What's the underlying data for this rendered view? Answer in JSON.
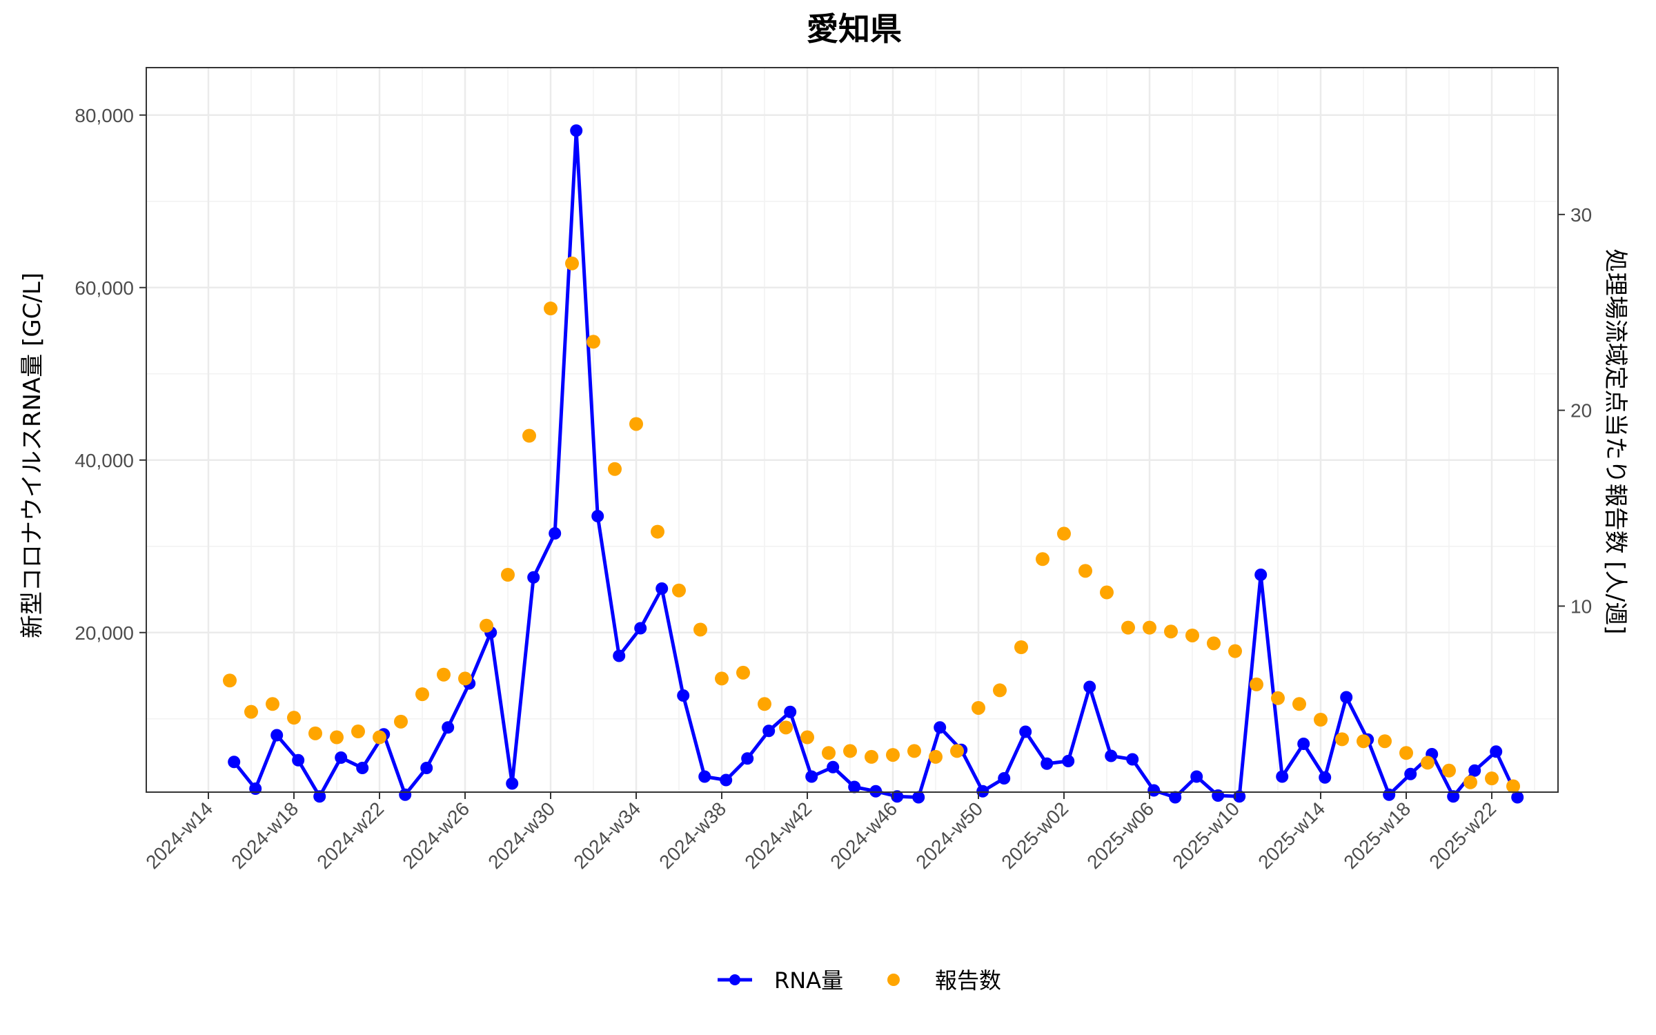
{
  "chart_data": {
    "type": "line",
    "title": "愛知県",
    "ylabel_left": "新型コロナウイルスRNA量 [GC/L]",
    "ylabel_right": "処理場流域定点当たり報告数 [人/週]",
    "x_tick_labels": [
      "2024-w14",
      "2024-w18",
      "2024-w22",
      "2024-w26",
      "2024-w30",
      "2024-w34",
      "2024-w38",
      "2024-w42",
      "2024-w46",
      "2024-w50",
      "2025-w02",
      "2025-w06",
      "2025-w10",
      "2025-w14",
      "2025-w18",
      "2025-w22"
    ],
    "y_left_ticks": [
      "20,000",
      "40,000",
      "60,000",
      "80,000"
    ],
    "y_right_ticks": [
      "10",
      "20",
      "30"
    ],
    "ylim_left": [
      1500,
      85500
    ],
    "ylim_right": [
      0.5,
      37.5
    ],
    "grid": true,
    "legend_position": "bottom",
    "colors": {
      "rna": "#0000ff",
      "reports": "#ffa500"
    },
    "series": [
      {
        "name": "RNA量",
        "axis": "left",
        "style": "line+points",
        "points": [
          [
            0.6,
            5000
          ],
          [
            1.1,
            1900
          ],
          [
            1.6,
            8100
          ],
          [
            2.1,
            5200
          ],
          [
            2.6,
            1000
          ],
          [
            3.1,
            5500
          ],
          [
            3.6,
            4300
          ],
          [
            4.1,
            8200
          ],
          [
            4.6,
            1200
          ],
          [
            5.1,
            4300
          ],
          [
            5.6,
            9000
          ],
          [
            6.1,
            14100
          ],
          [
            6.6,
            20000
          ],
          [
            7.1,
            2500
          ],
          [
            7.6,
            26400
          ],
          [
            8.1,
            31500
          ],
          [
            8.6,
            78200
          ],
          [
            9.1,
            33500
          ],
          [
            9.6,
            17300
          ],
          [
            10.1,
            20500
          ],
          [
            10.6,
            25100
          ],
          [
            11.1,
            12700
          ],
          [
            11.6,
            3300
          ],
          [
            12.1,
            2900
          ],
          [
            12.6,
            5400
          ],
          [
            13.1,
            8600
          ],
          [
            13.6,
            10800
          ],
          [
            14.1,
            3300
          ],
          [
            14.6,
            4400
          ],
          [
            15.1,
            2100
          ],
          [
            15.6,
            1600
          ],
          [
            16.1,
            1000
          ],
          [
            16.6,
            900
          ],
          [
            17.1,
            9000
          ],
          [
            17.6,
            6400
          ],
          [
            18.1,
            1600
          ],
          [
            18.6,
            3100
          ],
          [
            19.1,
            8500
          ],
          [
            19.6,
            4800
          ],
          [
            20.1,
            5100
          ],
          [
            20.6,
            13700
          ],
          [
            21.1,
            5700
          ],
          [
            21.6,
            5300
          ],
          [
            22.1,
            1700
          ],
          [
            22.6,
            900
          ],
          [
            23.1,
            3300
          ],
          [
            23.6,
            1100
          ],
          [
            24.1,
            1000
          ],
          [
            24.6,
            26700
          ],
          [
            25.1,
            3300
          ],
          [
            25.6,
            7100
          ],
          [
            26.1,
            3200
          ],
          [
            26.6,
            12500
          ],
          [
            27.1,
            7600
          ],
          [
            27.6,
            1200
          ],
          [
            28.1,
            3600
          ],
          [
            28.6,
            5900
          ],
          [
            29.1,
            1000
          ],
          [
            29.6,
            4000
          ],
          [
            30.1,
            6200
          ],
          [
            30.6,
            900
          ]
        ]
      },
      {
        "name": "報告数",
        "axis": "right",
        "style": "points",
        "points": [
          [
            0.5,
            6.2
          ],
          [
            1.0,
            4.6
          ],
          [
            1.5,
            5.0
          ],
          [
            2.0,
            4.3
          ],
          [
            2.5,
            3.5
          ],
          [
            3.0,
            3.3
          ],
          [
            3.5,
            3.6
          ],
          [
            4.0,
            3.3
          ],
          [
            4.5,
            4.1
          ],
          [
            5.0,
            5.5
          ],
          [
            5.5,
            6.5
          ],
          [
            6.0,
            6.3
          ],
          [
            6.5,
            9.0
          ],
          [
            7.0,
            11.6
          ],
          [
            7.5,
            18.7
          ],
          [
            8.0,
            25.2
          ],
          [
            8.5,
            27.5
          ],
          [
            9.0,
            23.5
          ],
          [
            9.5,
            17.0
          ],
          [
            10.0,
            19.3
          ],
          [
            10.5,
            13.8
          ],
          [
            11.0,
            10.8
          ],
          [
            11.5,
            8.8
          ],
          [
            12.0,
            6.3
          ],
          [
            12.5,
            6.6
          ],
          [
            13.0,
            5.0
          ],
          [
            13.5,
            3.8
          ],
          [
            14.0,
            3.3
          ],
          [
            14.5,
            2.5
          ],
          [
            15.0,
            2.6
          ],
          [
            15.5,
            2.3
          ],
          [
            16.0,
            2.4
          ],
          [
            16.5,
            2.6
          ],
          [
            17.0,
            2.3
          ],
          [
            17.5,
            2.6
          ],
          [
            18.0,
            4.8
          ],
          [
            18.5,
            5.7
          ],
          [
            19.0,
            7.9
          ],
          [
            19.5,
            12.4
          ],
          [
            20.0,
            13.7
          ],
          [
            20.5,
            11.8
          ],
          [
            21.0,
            10.7
          ],
          [
            21.5,
            8.9
          ],
          [
            22.0,
            8.9
          ],
          [
            22.5,
            8.7
          ],
          [
            23.0,
            8.5
          ],
          [
            23.5,
            8.1
          ],
          [
            24.0,
            7.7
          ],
          [
            24.5,
            6.0
          ],
          [
            25.0,
            5.3
          ],
          [
            25.5,
            5.0
          ],
          [
            26.0,
            4.2
          ],
          [
            26.5,
            3.2
          ],
          [
            27.0,
            3.1
          ],
          [
            27.5,
            3.1
          ],
          [
            28.0,
            2.5
          ],
          [
            28.5,
            2.0
          ],
          [
            29.0,
            1.6
          ],
          [
            29.5,
            1.0
          ],
          [
            30.0,
            1.2
          ],
          [
            30.5,
            0.8
          ]
        ]
      }
    ]
  }
}
